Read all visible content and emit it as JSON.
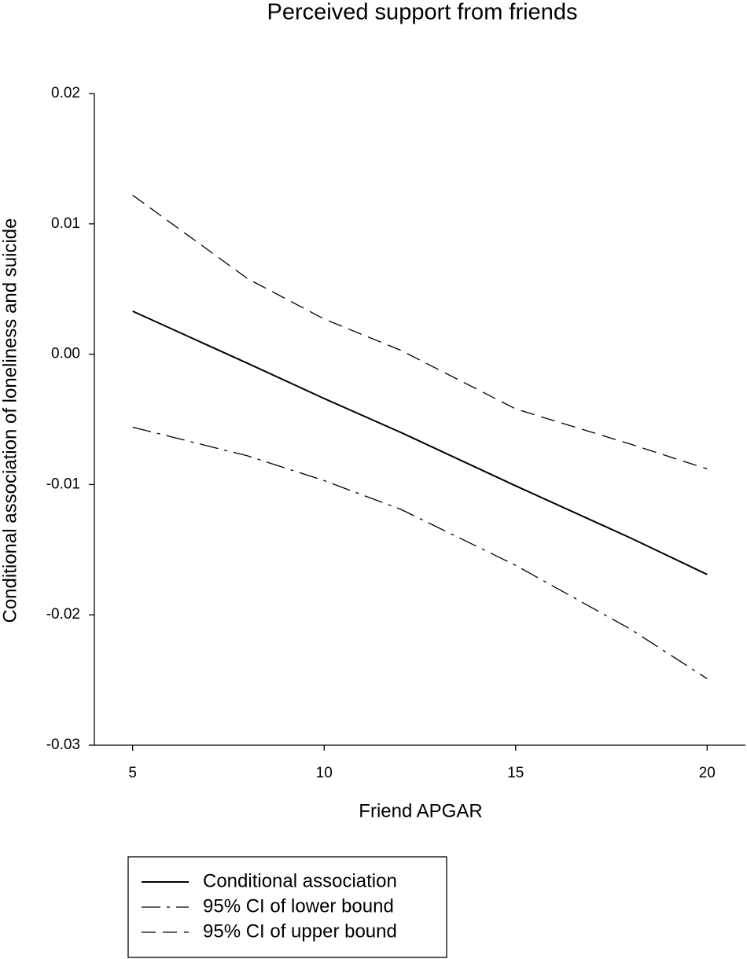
{
  "chart_data": {
    "type": "line",
    "title": "Perceived support from friends",
    "x_label": "Friend APGAR",
    "y_label": "Conditional association of loneliness and suicide",
    "x": [
      5,
      8,
      10,
      12,
      15,
      18,
      20
    ],
    "series": [
      {
        "name": "Conditional association",
        "color": "#000000",
        "style": "solid",
        "values": [
          0.0033,
          -0.0007,
          -0.0034,
          -0.006,
          -0.0101,
          -0.0141,
          -0.0169
        ]
      },
      {
        "name": "95% CI of lower bound",
        "color": "#000000",
        "style": "dashdot",
        "values": [
          -0.0056,
          -0.0078,
          -0.0097,
          -0.0119,
          -0.0162,
          -0.0211,
          -0.0249
        ]
      },
      {
        "name": "95% CI of upper bound",
        "color": "#000000",
        "style": "dashed",
        "values": [
          0.0122,
          0.0058,
          0.0027,
          0.0003,
          -0.0042,
          -0.0069,
          -0.0088
        ]
      }
    ],
    "xlim": [
      4,
      21
    ],
    "xticks": [
      5,
      10,
      15,
      20
    ],
    "ylim": [
      -0.03,
      0.02
    ],
    "yticks": [
      -0.03,
      -0.02,
      -0.01,
      {
        "value": 0,
        "label": "0.00"
      },
      0.01,
      0.02
    ],
    "grid": false,
    "legend": "bottom"
  }
}
